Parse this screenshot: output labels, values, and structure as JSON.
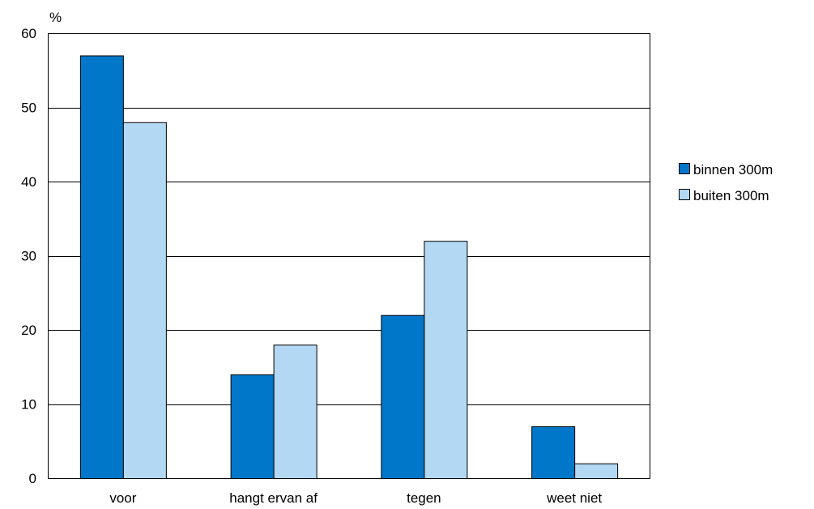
{
  "chart_data": {
    "type": "bar",
    "ylabel": "%",
    "ylim": [
      0,
      60
    ],
    "yticks": [
      0,
      10,
      20,
      30,
      40,
      50,
      60
    ],
    "grid": true,
    "legend_position": "right",
    "categories": [
      "voor",
      "hangt ervan af",
      "tegen",
      "weet niet"
    ],
    "series": [
      {
        "name": "binnen 300m",
        "color": "#0077c8",
        "values": [
          57,
          14,
          22,
          7
        ]
      },
      {
        "name": "buiten 300m",
        "color": "#b3d8f3",
        "values": [
          48,
          18,
          32,
          2
        ]
      }
    ]
  }
}
